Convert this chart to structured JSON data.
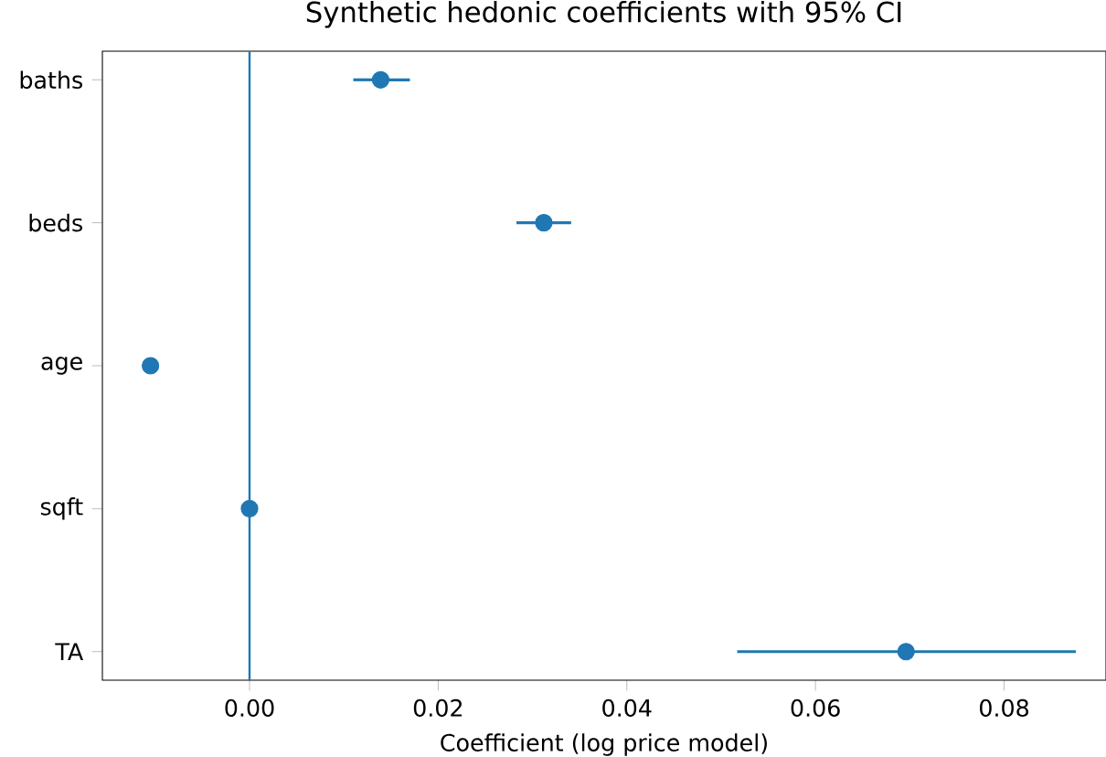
{
  "chart_data": {
    "type": "scatter",
    "title": "Synthetic hedonic coefficients with 95% CI",
    "xlabel": "Coefficient (log price model)",
    "categories": [
      "baths",
      "beds",
      "age",
      "sqft",
      "TA"
    ],
    "orientation": "horizontal",
    "values": [
      0.0139,
      0.0312,
      -0.0105,
      0.0,
      0.0696
    ],
    "errors": [
      [
        0.011,
        0.017
      ],
      [
        0.0283,
        0.0341
      ],
      null,
      null,
      [
        0.0517,
        0.0876
      ]
    ],
    "color": "#1f77b4",
    "marker": "circle",
    "xlim": [
      -0.0156,
      0.0908
    ],
    "xticks": [
      {
        "value": 0,
        "label": "0.00"
      },
      {
        "value": 0.02,
        "label": "0.02"
      },
      {
        "value": 0.04,
        "label": "0.04"
      },
      {
        "value": 0.06,
        "label": "0.06"
      },
      {
        "value": 0.08,
        "label": "0.08"
      }
    ],
    "ref_lines": [
      {
        "axis": "x",
        "value": 0,
        "color": "#1f77b4"
      }
    ]
  }
}
